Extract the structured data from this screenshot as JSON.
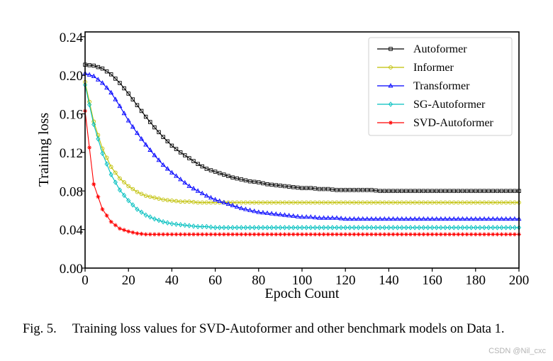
{
  "caption": {
    "fig_number": "Fig. 5.",
    "text": "Training loss values for SVD-Autoformer and other benchmark models on Data 1."
  },
  "watermark": "CSDN @Nil_cxc",
  "chart_data": {
    "type": "line",
    "title": "",
    "xlabel": "Epoch Count",
    "ylabel": "Training loss",
    "xlim": [
      0,
      200
    ],
    "ylim": [
      0.0,
      0.245
    ],
    "xticks": [
      0,
      20,
      40,
      60,
      80,
      100,
      120,
      140,
      160,
      180,
      200
    ],
    "yticks": [
      0.0,
      0.04,
      0.08,
      0.12,
      0.16,
      0.2,
      0.24
    ],
    "ytick_labels": [
      "0.00",
      "0.04",
      "0.08",
      "0.12",
      "0.16",
      "0.20",
      "0.24"
    ],
    "grid": false,
    "legend_position": "top-right",
    "x": [
      0,
      4,
      8,
      12,
      16,
      20,
      24,
      28,
      32,
      36,
      40,
      44,
      48,
      52,
      56,
      60,
      64,
      68,
      72,
      76,
      80,
      84,
      88,
      92,
      96,
      100,
      104,
      108,
      112,
      116,
      120,
      124,
      128,
      132,
      136,
      140,
      144,
      148,
      152,
      156,
      160,
      164,
      168,
      172,
      176,
      180,
      184,
      188,
      192,
      196,
      200
    ],
    "series": [
      {
        "name": "Autoformer",
        "color": "#000000",
        "marker": "square",
        "values": [
          0.211,
          0.21,
          0.207,
          0.201,
          0.192,
          0.181,
          0.169,
          0.157,
          0.146,
          0.136,
          0.127,
          0.12,
          0.114,
          0.108,
          0.103,
          0.1,
          0.097,
          0.094,
          0.092,
          0.09,
          0.089,
          0.087,
          0.086,
          0.085,
          0.084,
          0.083,
          0.083,
          0.082,
          0.082,
          0.081,
          0.081,
          0.081,
          0.081,
          0.081,
          0.08,
          0.08,
          0.08,
          0.08,
          0.08,
          0.08,
          0.08,
          0.08,
          0.08,
          0.08,
          0.08,
          0.08,
          0.08,
          0.08,
          0.08,
          0.08,
          0.08
        ]
      },
      {
        "name": "Informer",
        "color": "#bfbf00",
        "marker": "circle",
        "values": [
          0.193,
          0.152,
          0.124,
          0.105,
          0.093,
          0.085,
          0.079,
          0.075,
          0.073,
          0.071,
          0.07,
          0.069,
          0.069,
          0.068,
          0.068,
          0.068,
          0.068,
          0.068,
          0.068,
          0.068,
          0.068,
          0.068,
          0.068,
          0.068,
          0.068,
          0.068,
          0.068,
          0.068,
          0.068,
          0.068,
          0.068,
          0.068,
          0.068,
          0.068,
          0.068,
          0.068,
          0.068,
          0.068,
          0.068,
          0.068,
          0.068,
          0.068,
          0.068,
          0.068,
          0.068,
          0.068,
          0.068,
          0.068,
          0.068,
          0.068,
          0.068
        ]
      },
      {
        "name": "Transformer",
        "color": "#0000ff",
        "marker": "triangle",
        "values": [
          0.202,
          0.199,
          0.192,
          0.182,
          0.168,
          0.153,
          0.14,
          0.128,
          0.117,
          0.107,
          0.099,
          0.092,
          0.085,
          0.08,
          0.075,
          0.071,
          0.068,
          0.065,
          0.062,
          0.06,
          0.058,
          0.057,
          0.056,
          0.055,
          0.054,
          0.053,
          0.053,
          0.052,
          0.052,
          0.052,
          0.051,
          0.051,
          0.051,
          0.051,
          0.051,
          0.051,
          0.051,
          0.051,
          0.051,
          0.051,
          0.051,
          0.051,
          0.051,
          0.051,
          0.051,
          0.051,
          0.051,
          0.051,
          0.051,
          0.051,
          0.051
        ]
      },
      {
        "name": "SG-Autoformer",
        "color": "#00bfbf",
        "marker": "diamond",
        "values": [
          0.19,
          0.149,
          0.119,
          0.097,
          0.081,
          0.07,
          0.061,
          0.055,
          0.051,
          0.048,
          0.046,
          0.045,
          0.044,
          0.043,
          0.043,
          0.042,
          0.042,
          0.042,
          0.042,
          0.042,
          0.042,
          0.042,
          0.042,
          0.042,
          0.042,
          0.042,
          0.042,
          0.042,
          0.042,
          0.042,
          0.042,
          0.042,
          0.042,
          0.042,
          0.042,
          0.042,
          0.042,
          0.042,
          0.042,
          0.042,
          0.042,
          0.042,
          0.042,
          0.042,
          0.042,
          0.042,
          0.042,
          0.042,
          0.042,
          0.042,
          0.042
        ]
      },
      {
        "name": "SVD-Autoformer",
        "color": "#ff0000",
        "marker": "star",
        "values": [
          0.163,
          0.087,
          0.061,
          0.048,
          0.041,
          0.038,
          0.036,
          0.035,
          0.035,
          0.035,
          0.035,
          0.035,
          0.035,
          0.035,
          0.035,
          0.035,
          0.035,
          0.035,
          0.035,
          0.035,
          0.035,
          0.035,
          0.035,
          0.035,
          0.035,
          0.035,
          0.035,
          0.035,
          0.035,
          0.035,
          0.035,
          0.035,
          0.035,
          0.035,
          0.035,
          0.035,
          0.035,
          0.035,
          0.035,
          0.035,
          0.035,
          0.035,
          0.035,
          0.035,
          0.035,
          0.035,
          0.035,
          0.035,
          0.035,
          0.035,
          0.035
        ]
      }
    ]
  }
}
